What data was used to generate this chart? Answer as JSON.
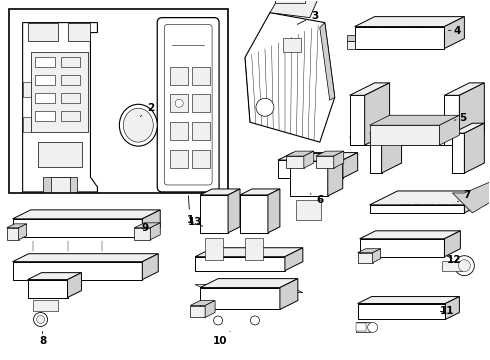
{
  "background_color": "#ffffff",
  "line_color": "#000000",
  "figure_width": 4.9,
  "figure_height": 3.6,
  "dpi": 100,
  "lw": 0.7,
  "gray_fill": "#e8e8e8",
  "mid_gray": "#d0d0d0",
  "light_gray": "#f0f0f0"
}
